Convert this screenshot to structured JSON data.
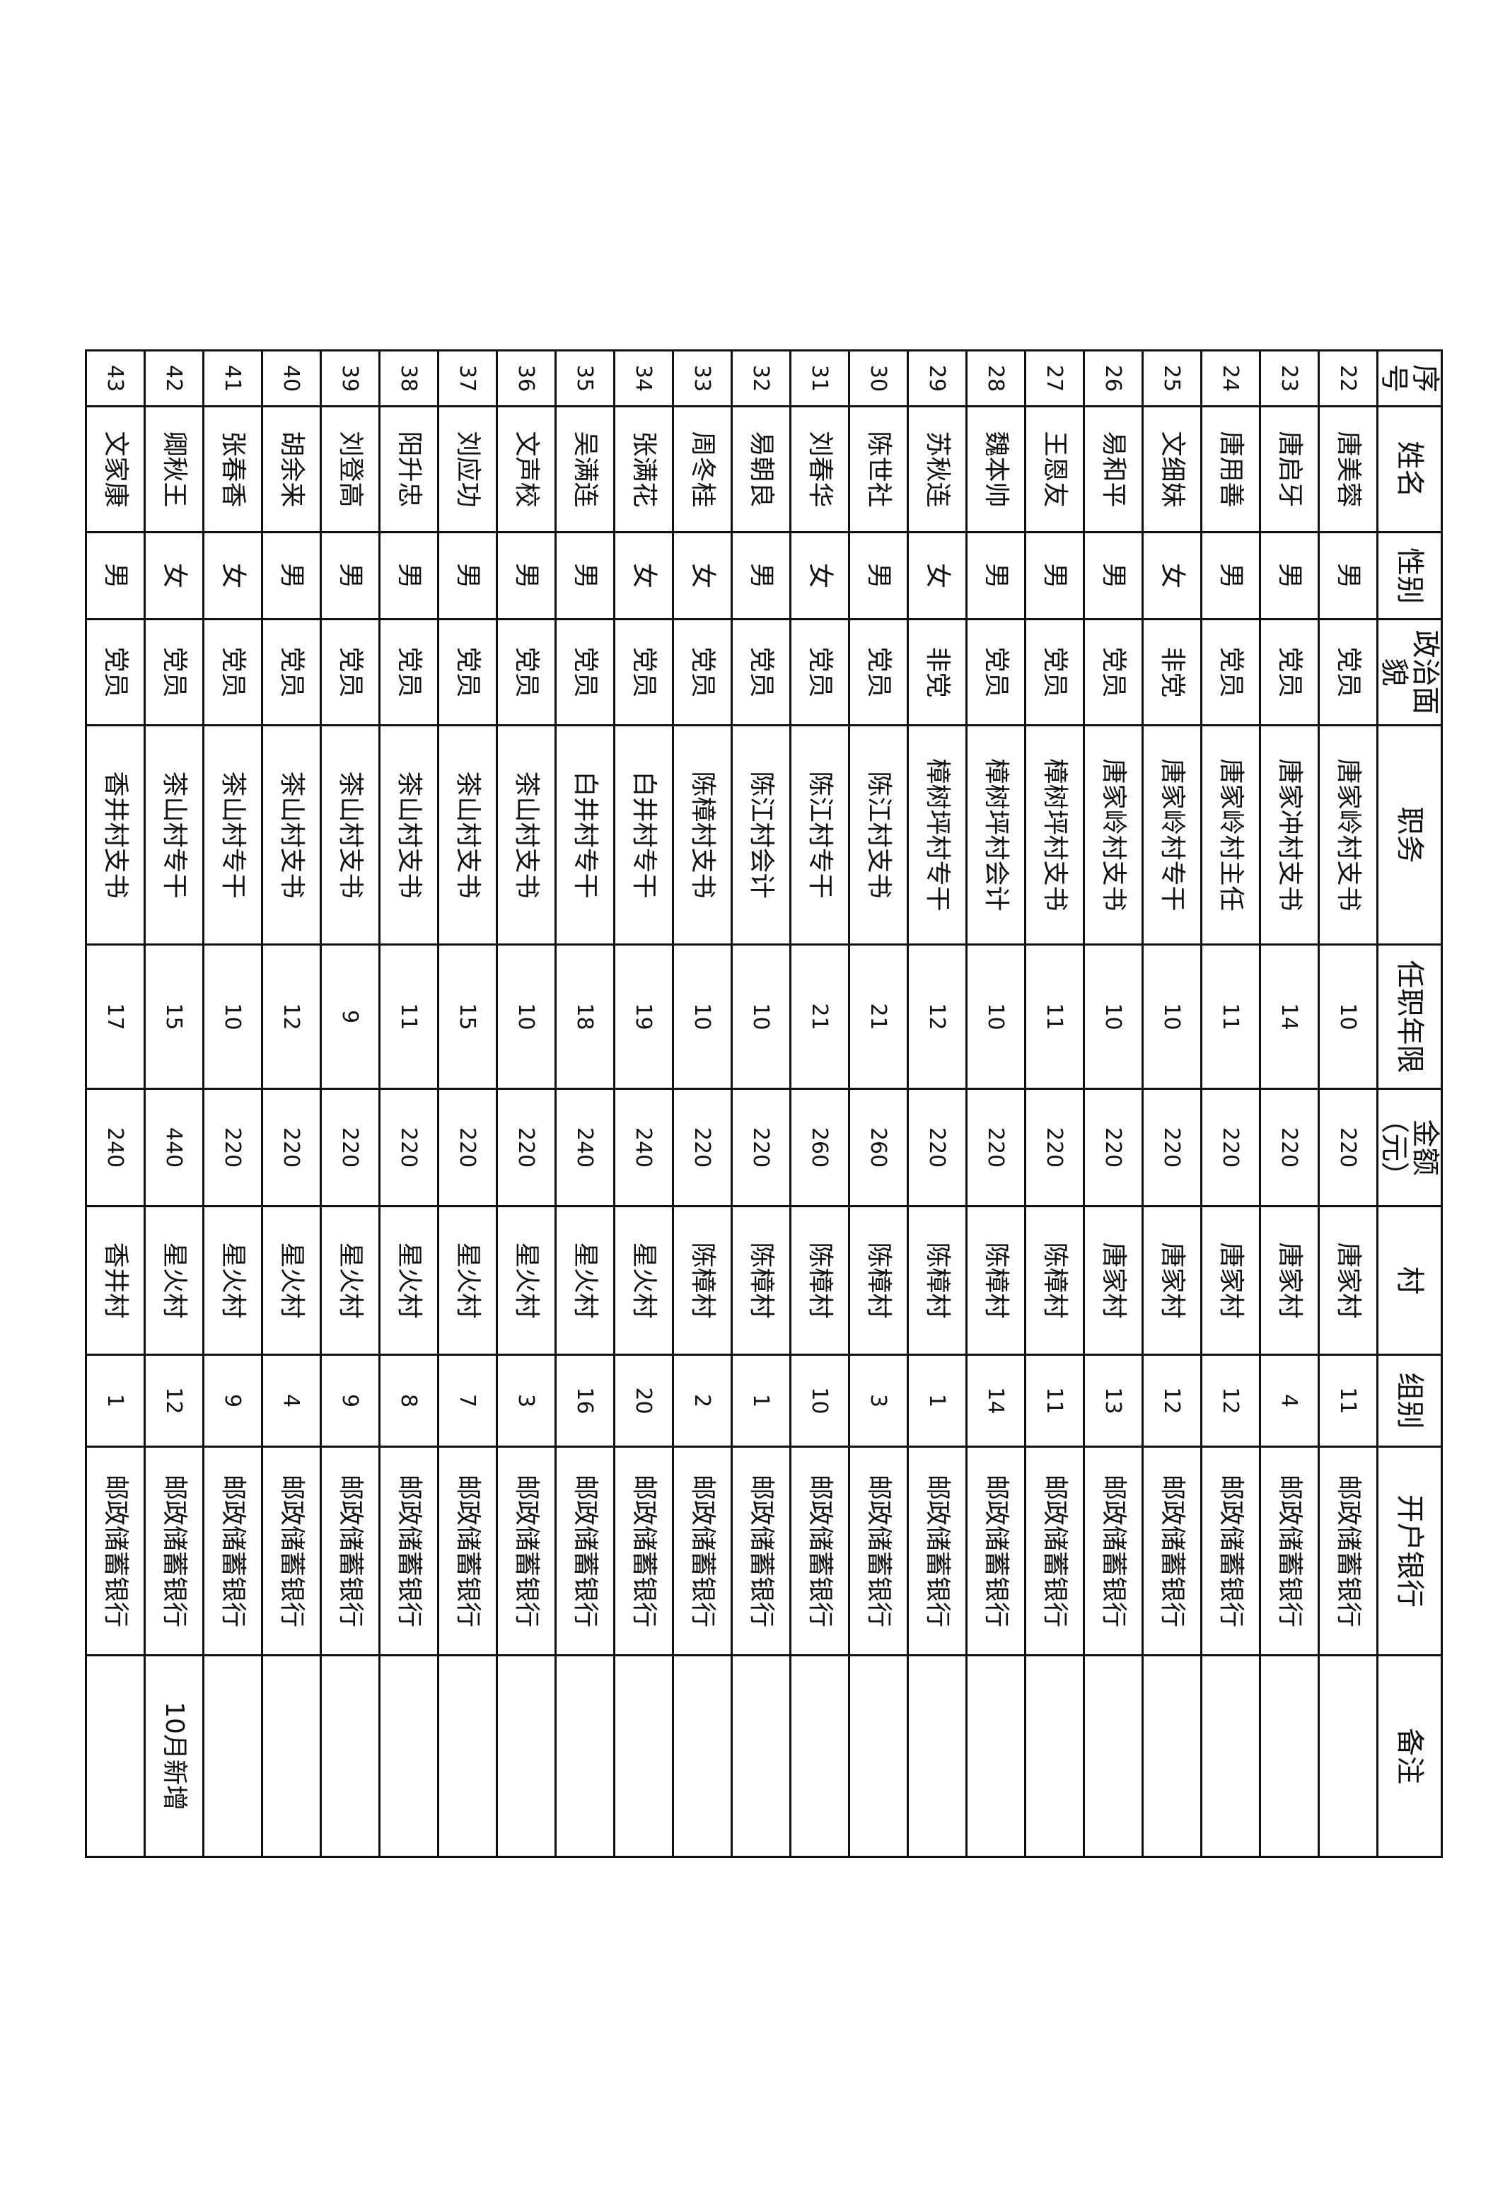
{
  "headers": [
    "序号",
    "姓名",
    "性别",
    "政治面貌",
    "职务",
    "任职年限",
    "金额（元）",
    "村",
    "组别",
    "开户银行",
    "备注"
  ],
  "rows": [
    [
      "22",
      "唐美蓉",
      "男",
      "党员",
      "唐家岭村支书",
      "10",
      "220",
      "唐家村",
      "11",
      "邮政储蓄银行",
      ""
    ],
    [
      "23",
      "唐启牙",
      "男",
      "党员",
      "唐家冲村支书",
      "14",
      "220",
      "唐家村",
      "4",
      "邮政储蓄银行",
      ""
    ],
    [
      "24",
      "唐用善",
      "男",
      "党员",
      "唐家岭村主任",
      "11",
      "220",
      "唐家村",
      "12",
      "邮政储蓄银行",
      ""
    ],
    [
      "25",
      "文细妹",
      "女",
      "非党",
      "唐家岭村专干",
      "10",
      "220",
      "唐家村",
      "12",
      "邮政储蓄银行",
      ""
    ],
    [
      "26",
      "易和平",
      "男",
      "党员",
      "唐家岭村支书",
      "10",
      "220",
      "唐家村",
      "13",
      "邮政储蓄银行",
      ""
    ],
    [
      "27",
      "王恩友",
      "男",
      "党员",
      "樟树坪村支书",
      "11",
      "220",
      "陈樟村",
      "11",
      "邮政储蓄银行",
      ""
    ],
    [
      "28",
      "魏本帅",
      "男",
      "党员",
      "樟树坪村会计",
      "10",
      "220",
      "陈樟村",
      "14",
      "邮政储蓄银行",
      ""
    ],
    [
      "29",
      "苏秋连",
      "女",
      "非党",
      "樟树坪村专干",
      "12",
      "220",
      "陈樟村",
      "1",
      "邮政储蓄银行",
      ""
    ],
    [
      "30",
      "陈世社",
      "男",
      "党员",
      "陈江村支书",
      "21",
      "260",
      "陈樟村",
      "3",
      "邮政储蓄银行",
      ""
    ],
    [
      "31",
      "刘春华",
      "女",
      "党员",
      "陈江村专干",
      "21",
      "260",
      "陈樟村",
      "10",
      "邮政储蓄银行",
      ""
    ],
    [
      "32",
      "易朝良",
      "男",
      "党员",
      "陈江村会计",
      "10",
      "220",
      "陈樟村",
      "1",
      "邮政储蓄银行",
      ""
    ],
    [
      "33",
      "周冬桂",
      "女",
      "党员",
      "陈樟村支书",
      "10",
      "220",
      "陈樟村",
      "2",
      "邮政储蓄银行",
      ""
    ],
    [
      "34",
      "张满花",
      "女",
      "党员",
      "白井村专干",
      "19",
      "240",
      "星火村",
      "20",
      "邮政储蓄银行",
      ""
    ],
    [
      "35",
      "吴满连",
      "男",
      "党员",
      "白井村专干",
      "18",
      "240",
      "星火村",
      "16",
      "邮政储蓄银行",
      ""
    ],
    [
      "36",
      "文声校",
      "男",
      "党员",
      "茶山村支书",
      "10",
      "220",
      "星火村",
      "3",
      "邮政储蓄银行",
      ""
    ],
    [
      "37",
      "刘应功",
      "男",
      "党员",
      "茶山村支书",
      "15",
      "220",
      "星火村",
      "7",
      "邮政储蓄银行",
      ""
    ],
    [
      "38",
      "阳升忠",
      "男",
      "党员",
      "茶山村支书",
      "11",
      "220",
      "星火村",
      "8",
      "邮政储蓄银行",
      ""
    ],
    [
      "39",
      "刘登高",
      "男",
      "党员",
      "茶山村支书",
      "9",
      "220",
      "星火村",
      "9",
      "邮政储蓄银行",
      ""
    ],
    [
      "40",
      "胡余来",
      "男",
      "党员",
      "茶山村支书",
      "12",
      "220",
      "星火村",
      "4",
      "邮政储蓄银行",
      ""
    ],
    [
      "41",
      "张春香",
      "女",
      "党员",
      "茶山村专干",
      "10",
      "220",
      "星火村",
      "9",
      "邮政储蓄银行",
      ""
    ],
    [
      "42",
      "卿秋王",
      "女",
      "党员",
      "茶山村专干",
      "15",
      "440",
      "星火村",
      "12",
      "邮政储蓄银行",
      "10月新增"
    ],
    [
      "43",
      "文家康",
      "男",
      "党员",
      "香井村支书",
      "17",
      "240",
      "香井村",
      "1",
      "邮政储蓄银行",
      ""
    ]
  ]
}
